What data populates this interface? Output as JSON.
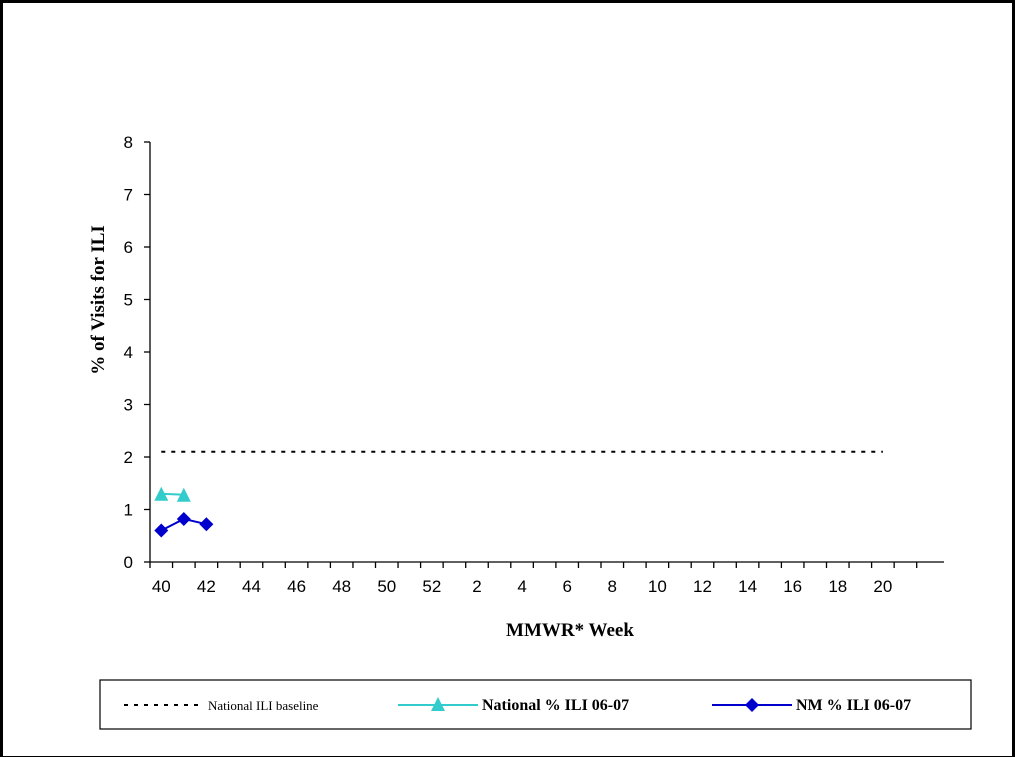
{
  "chart_data": {
    "type": "line",
    "xlabel": "MMWR* Week",
    "ylabel": "% of Visits for ILI",
    "ylim": [
      0,
      8
    ],
    "yticks": [
      "0",
      "1",
      "2",
      "3",
      "4",
      "5",
      "6",
      "7",
      "8"
    ],
    "x_tick_labels": [
      "40",
      "42",
      "44",
      "46",
      "48",
      "50",
      "52",
      "2",
      "4",
      "6",
      "8",
      "10",
      "12",
      "14",
      "16",
      "18",
      "20"
    ],
    "weeks": [
      40,
      41,
      42,
      43,
      44,
      45,
      46,
      47,
      48,
      49,
      50,
      51,
      52,
      1,
      2,
      3,
      4,
      5,
      6,
      7,
      8,
      9,
      10,
      11,
      12,
      13,
      14,
      15,
      16,
      17,
      18,
      19,
      20,
      21
    ],
    "grid": false,
    "legend_position": "bottom",
    "series": [
      {
        "name": "National ILI baseline",
        "style": "dotted",
        "color": "#000000",
        "x": [
          40,
          20
        ],
        "y": [
          2.1,
          2.1
        ]
      },
      {
        "name": "National % ILI 06-07",
        "style": "solid",
        "marker": "triangle",
        "color": "#33CCCC",
        "x": [
          40,
          41
        ],
        "y": [
          1.3,
          1.28
        ]
      },
      {
        "name": "NM % ILI 06-07",
        "style": "solid",
        "marker": "diamond",
        "color": "#0000CC",
        "x": [
          40,
          41,
          42
        ],
        "y": [
          0.6,
          0.82,
          0.72
        ]
      }
    ]
  }
}
